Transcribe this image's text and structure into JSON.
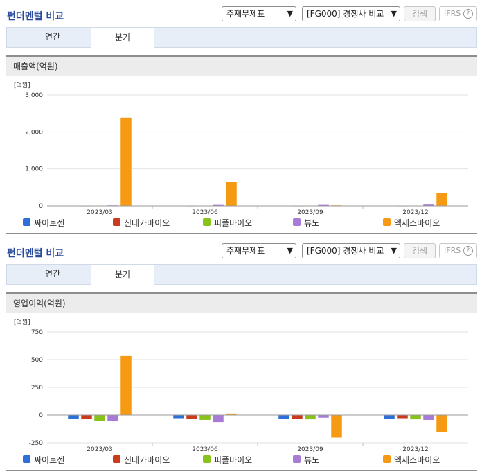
{
  "panels": [
    {
      "title": "펀더멘털 비교",
      "statement_select": "주재무제표",
      "compare_select": "[FG000] 경쟁사 비교",
      "search_label": "검색",
      "ifrs_label": "IFRS",
      "help_glyph": "?",
      "tabs": [
        "연간",
        "분기"
      ],
      "active_tab": "분기",
      "section_title": "매출액(억원)"
    },
    {
      "title": "펀더멘털 비교",
      "statement_select": "주재무제표",
      "compare_select": "[FG000] 경쟁사 비교",
      "search_label": "검색",
      "ifrs_label": "IFRS",
      "help_glyph": "?",
      "tabs": [
        "연간",
        "분기"
      ],
      "active_tab": "분기",
      "section_title": "영업이익(억원)"
    }
  ],
  "colors": {
    "series": [
      "#2e6fd8",
      "#cc3a1e",
      "#8ac21c",
      "#a77bd6",
      "#f59a12"
    ],
    "accent_title": "#2a4a9a"
  },
  "chart_data": [
    {
      "type": "bar",
      "unit_label": "[억원]",
      "categories": [
        "2023/03",
        "2023/06",
        "2023/09",
        "2023/12"
      ],
      "ylim": [
        0,
        3000
      ],
      "yticks": [
        0,
        1000,
        2000,
        3000
      ],
      "ytick_labels": [
        "0",
        "1,000",
        "2,000",
        "3,000"
      ],
      "grid": true,
      "legend_position": "bottom",
      "series": [
        {
          "name": "싸이토젠",
          "values": [
            5,
            5,
            5,
            5
          ]
        },
        {
          "name": "신테카바이오",
          "values": [
            3,
            3,
            3,
            3
          ]
        },
        {
          "name": "피플바이오",
          "values": [
            5,
            5,
            5,
            5
          ]
        },
        {
          "name": "뷰노",
          "values": [
            20,
            30,
            30,
            40
          ]
        },
        {
          "name": "엑세스바이오",
          "values": [
            2390,
            650,
            20,
            350
          ]
        }
      ]
    },
    {
      "type": "bar",
      "unit_label": "[억원]",
      "categories": [
        "2023/03",
        "2023/06",
        "2023/09",
        "2023/12"
      ],
      "ylim": [
        -250,
        750
      ],
      "yticks": [
        -250,
        0,
        250,
        500,
        750
      ],
      "ytick_labels": [
        "-250",
        "0",
        "250",
        "500",
        "750"
      ],
      "grid": true,
      "legend_position": "bottom",
      "series": [
        {
          "name": "싸이토젠",
          "values": [
            -35,
            -30,
            -35,
            -35
          ]
        },
        {
          "name": "신테카바이오",
          "values": [
            -38,
            -35,
            -35,
            -30
          ]
        },
        {
          "name": "피플바이오",
          "values": [
            -55,
            -45,
            -40,
            -40
          ]
        },
        {
          "name": "뷰노",
          "values": [
            -55,
            -65,
            -25,
            -45
          ]
        },
        {
          "name": "엑세스바이오",
          "values": [
            540,
            15,
            -205,
            -155
          ]
        }
      ]
    }
  ]
}
